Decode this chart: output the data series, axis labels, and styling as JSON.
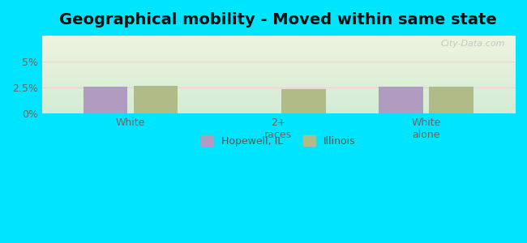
{
  "title": "Geographical mobility - Moved within same state",
  "categories": [
    "White",
    "2+\nraces",
    "White\nalone"
  ],
  "hopewell_values": [
    2.6,
    0.0,
    2.55
  ],
  "illinois_values": [
    2.65,
    2.35,
    2.6
  ],
  "hopewell_color": "#b09cc0",
  "illinois_color": "#b0bb88",
  "ylim": [
    0,
    7.5
  ],
  "yticks": [
    0,
    2.5,
    5.0
  ],
  "ytick_labels": [
    "0%",
    "2.5%",
    "5%"
  ],
  "background_top": "#eef4e0",
  "background_bottom": "#d4ecd4",
  "outer_bg": "#00e5ff",
  "bar_width": 0.3,
  "legend_hopewell": "Hopewell, IL",
  "legend_illinois": "Illinois",
  "grid_color": "#e8d0d8",
  "title_fontsize": 14,
  "tick_fontsize": 9,
  "legend_fontsize": 9
}
